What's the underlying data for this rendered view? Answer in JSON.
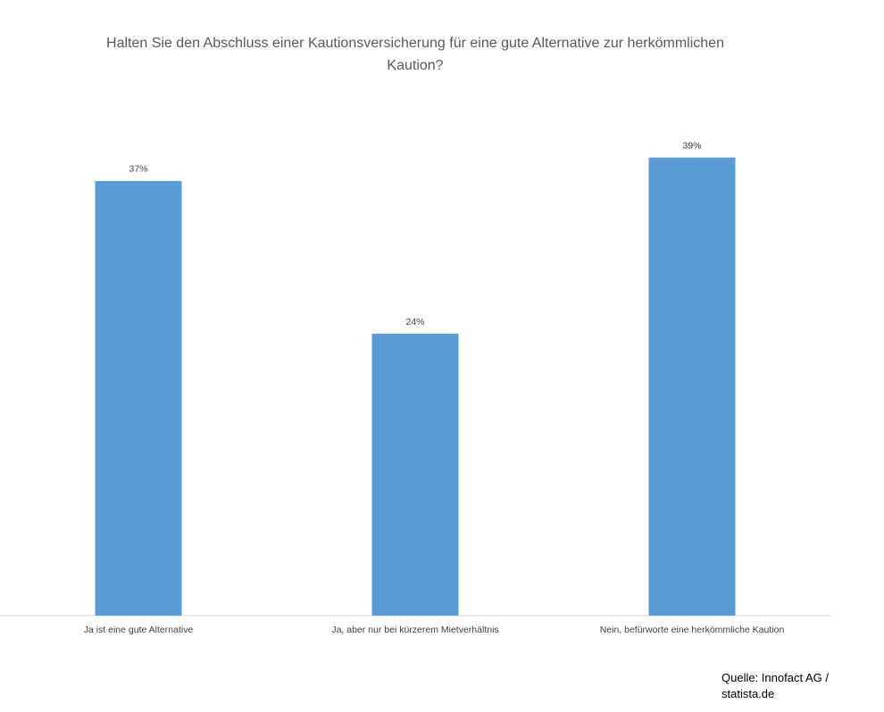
{
  "chart_data": {
    "type": "bar",
    "title": "Halten Sie den Abschluss einer Kautionsversicherung für eine gute Alternative zur herkömmlichen Kaution?",
    "categories": [
      "Ja ist eine gute Alternative",
      "Ja, aber nur bei kürzerem Mietverhältnis",
      "Nein, befürworte eine herkömmliche Kaution"
    ],
    "values": [
      37,
      24,
      39
    ],
    "value_labels": [
      "37%",
      "24%",
      "39%"
    ],
    "color": "#5b9bd5",
    "source": "Quelle: Innofact AG / statista.de"
  }
}
